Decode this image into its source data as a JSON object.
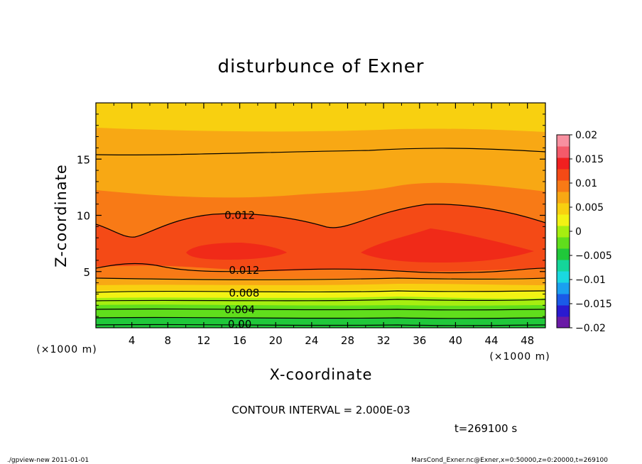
{
  "chart_data": {
    "type": "contour",
    "title": "disturbunce of Exner",
    "xlabel": "X-coordinate",
    "ylabel": "Z-coordinate",
    "x_unit": "(×1000 m)",
    "z_unit": "(×1000 m)",
    "xlim": [
      0,
      50
    ],
    "zlim": [
      0,
      20
    ],
    "x_ticks": [
      4,
      8,
      12,
      16,
      20,
      24,
      28,
      32,
      36,
      40,
      44,
      48
    ],
    "z_ticks": [
      5,
      10,
      15
    ],
    "colorbar": {
      "levels": [
        -0.02,
        -0.015,
        -0.01,
        -0.005,
        0,
        0.005,
        0.01,
        0.015,
        0.02
      ],
      "tick_labels": [
        "0.02",
        "0.015",
        "0.01",
        "0.005",
        "0",
        "−0.005",
        "−0.01",
        "−0.015",
        "−0.02"
      ],
      "colors": [
        "#6a1aa6",
        "#2a1ad0",
        "#1a5ae8",
        "#1aa0f0",
        "#1ad8e0",
        "#14d69a",
        "#20c83a",
        "#60de1c",
        "#a6ee10",
        "#f2f214",
        "#f8d010",
        "#f8a814",
        "#f87a16",
        "#f44a16",
        "#f02020",
        "#f45a6a",
        "#f890a0"
      ]
    },
    "contour_labels": [
      {
        "x": 16,
        "z": 10.0,
        "text": "0.012"
      },
      {
        "x": 16.5,
        "z": 5.1,
        "text": "0.012"
      },
      {
        "x": 16.5,
        "z": 3.1,
        "text": "0.008"
      },
      {
        "x": 16,
        "z": 1.6,
        "text": "0.004"
      },
      {
        "x": 16,
        "z": 0.3,
        "text": "0.00"
      }
    ],
    "contour_interval_text": "CONTOUR INTERVAL = 2.000E-03",
    "time_text": "t=269100 s",
    "footer_left": "./gpview-new  2011-01-01",
    "footer_right": "MarsCond_Exner.nc@Exner,x=0:50000,z=0:20000,t=269100"
  }
}
